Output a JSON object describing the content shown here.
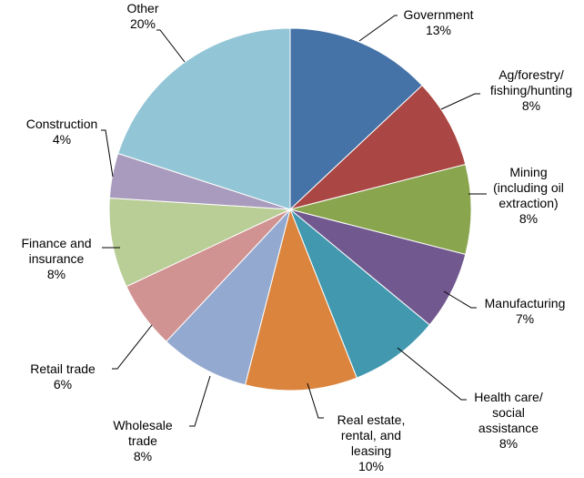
{
  "chart_data": {
    "type": "pie",
    "title": "",
    "start_angle_deg": 0,
    "direction": "clockwise",
    "slices": [
      {
        "label": [
          "Government"
        ],
        "value": 13,
        "display": "13%",
        "color": "#4572A7"
      },
      {
        "label": [
          "Ag/forestry/",
          "fishing/hunting"
        ],
        "value": 8,
        "display": "8%",
        "color": "#AA4643"
      },
      {
        "label": [
          "Mining",
          "(including oil",
          "extraction)"
        ],
        "value": 8,
        "display": "8%",
        "color": "#89A54E"
      },
      {
        "label": [
          "Manufacturing"
        ],
        "value": 7,
        "display": "7%",
        "color": "#71588F"
      },
      {
        "label": [
          "Health care/",
          "social",
          "assistance"
        ],
        "value": 8,
        "display": "8%",
        "color": "#4198AF"
      },
      {
        "label": [
          "Real estate,",
          "rental, and",
          "leasing"
        ],
        "value": 10,
        "display": "10%",
        "color": "#DB843D"
      },
      {
        "label": [
          "Wholesale",
          "trade"
        ],
        "value": 8,
        "display": "8%",
        "color": "#93A9CF"
      },
      {
        "label": [
          "Retail trade"
        ],
        "value": 6,
        "display": "6%",
        "color": "#D19392"
      },
      {
        "label": [
          "Finance and",
          "insurance"
        ],
        "value": 8,
        "display": "8%",
        "color": "#B9CD96"
      },
      {
        "label": [
          "Construction"
        ],
        "value": 4,
        "display": "4%",
        "color": "#A99BBD"
      },
      {
        "label": [
          "Other"
        ],
        "value": 20,
        "display": "20%",
        "color": "#92C5D6"
      }
    ]
  }
}
